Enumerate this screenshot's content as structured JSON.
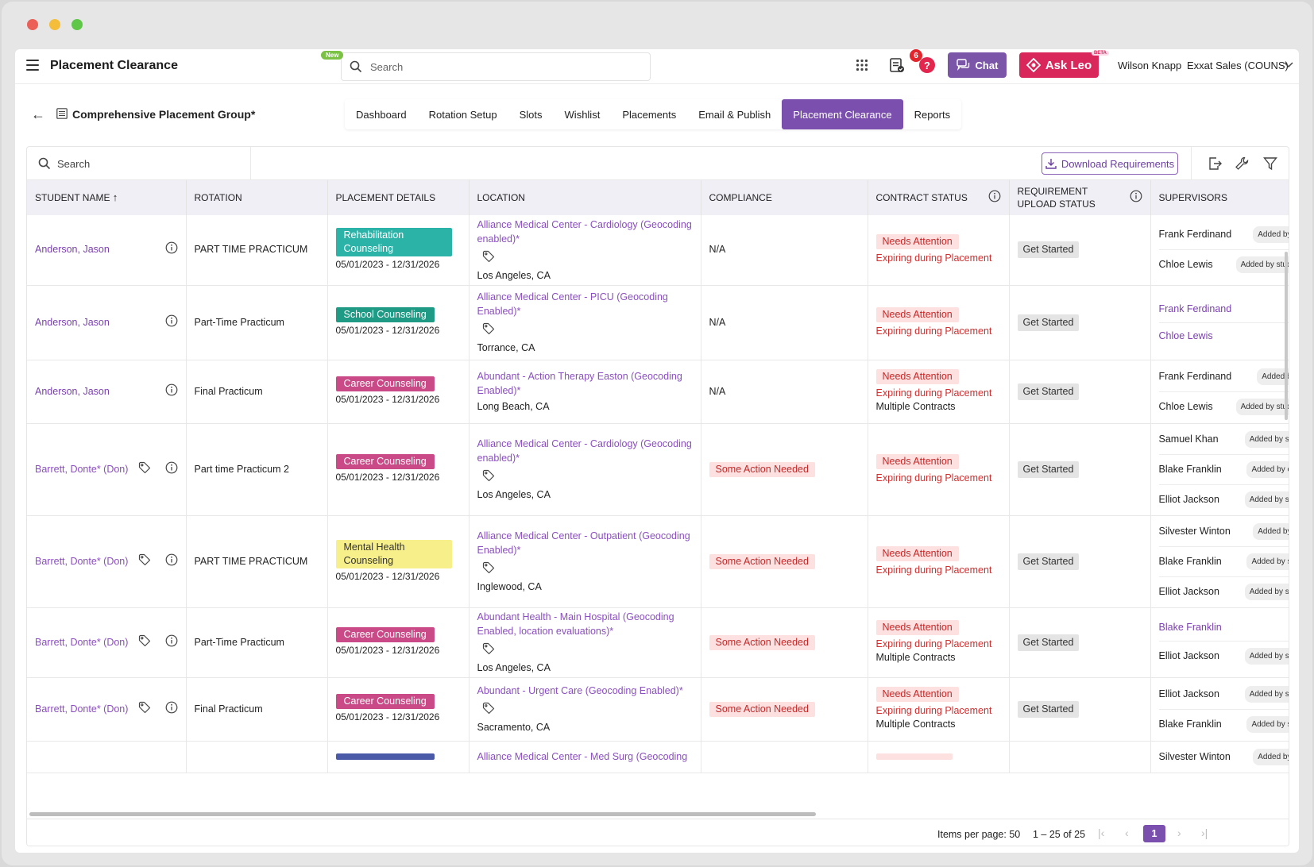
{
  "window": {
    "traffic_colors": [
      "#ec5f57",
      "#f5be3a",
      "#5ec747"
    ]
  },
  "header": {
    "app_title": "Placement Clearance",
    "new_badge": "New",
    "search_placeholder": "Search",
    "notification_count": "6",
    "help_label": "?",
    "chat_label": "Chat",
    "ask_leo_label": "Ask Leo",
    "beta_label": "BETA",
    "user_name": "Wilson Knapp",
    "org_name": "Exxat Sales (COUNS)"
  },
  "subheader": {
    "group_title": "Comprehensive Placement Group*",
    "tabs": [
      "Dashboard",
      "Rotation Setup",
      "Slots",
      "Wishlist",
      "Placements",
      "Email & Publish",
      "Placement Clearance",
      "Reports"
    ],
    "active_tab": "Placement Clearance"
  },
  "toolbar": {
    "search_placeholder": "Search",
    "download_label": "Download Requirements"
  },
  "table": {
    "columns": [
      "STUDENT NAME",
      "ROTATION",
      "PLACEMENT DETAILS",
      "LOCATION",
      "COMPLIANCE",
      "CONTRACT STATUS",
      "REQUIREMENT UPLOAD STATUS",
      "SUPERVISORS"
    ],
    "rows": [
      {
        "student": "Anderson, Jason",
        "tag": false,
        "rotation": "PART TIME PRACTICUM",
        "chip": "Rehabilitation Counseling",
        "chip_color": "#2bb3a8",
        "dates": "05/01/2023 - 12/31/2026",
        "location": "Alliance Medical Center - Cardiology (Geocoding enabled)*",
        "loc_tag": true,
        "city": "Los Angeles, CA",
        "compliance": "N/A",
        "contract": "Needs Attention",
        "expiring": "Expiring during Placement",
        "multiple": "",
        "upload": "Get Started",
        "supervisors": [
          {
            "name": "Frank Ferdinand",
            "added": "Added by",
            "link": false
          },
          {
            "name": "Chloe Lewis",
            "added": "Added by stud",
            "link": false
          }
        ]
      },
      {
        "student": "Anderson, Jason",
        "tag": false,
        "rotation": "Part-Time Practicum",
        "chip": "School Counseling",
        "chip_color": "#1f9a84",
        "dates": "05/01/2023 - 12/31/2026",
        "location": "Alliance Medical Center - PICU (Geocoding Enabled)*",
        "loc_tag": true,
        "city": "Torrance, CA",
        "compliance": "N/A",
        "contract": "Needs Attention",
        "expiring": "Expiring during Placement",
        "multiple": "",
        "upload": "Get Started",
        "supervisors": [
          {
            "name": "Frank Ferdinand",
            "added": "",
            "link": true
          },
          {
            "name": "Chloe Lewis",
            "added": "",
            "link": true
          }
        ]
      },
      {
        "student": "Anderson, Jason",
        "tag": false,
        "rotation": "Final Practicum",
        "chip": "Career Counseling",
        "chip_color": "#c94a86",
        "dates": "05/01/2023 - 12/31/2026",
        "location": "Abundant - Action Therapy Easton (Geocoding Enabled)*",
        "loc_tag": false,
        "city": "Long Beach, CA",
        "compliance": "N/A",
        "contract": "Needs Attention",
        "expiring": "Expiring during Placement",
        "multiple": "Multiple Contracts",
        "upload": "Get Started",
        "supervisors": [
          {
            "name": "Frank Ferdinand",
            "added": "Added b",
            "link": false
          },
          {
            "name": "Chloe Lewis",
            "added": "Added by stud",
            "link": false
          }
        ]
      },
      {
        "student": "Barrett, Donte* (Don)",
        "tag": true,
        "rotation": "Part time Practicum 2",
        "chip": "Career Counseling",
        "chip_color": "#c94a86",
        "dates": "05/01/2023 - 12/31/2026",
        "location": "Alliance Medical Center - Cardiology (Geocoding enabled)*",
        "loc_tag": true,
        "city": "Los Angeles, CA",
        "compliance": "Some Action Needed",
        "contract": "Needs Attention",
        "expiring": "Expiring during Placement",
        "multiple": "",
        "upload": "Get Started",
        "supervisors": [
          {
            "name": "Samuel Khan",
            "added": "Added by st",
            "link": false
          },
          {
            "name": "Blake Franklin",
            "added": "Added by c",
            "link": false
          },
          {
            "name": "Elliot Jackson",
            "added": "Added by st",
            "link": false
          }
        ]
      },
      {
        "student": "Barrett, Donte* (Don)",
        "tag": true,
        "rotation": "PART TIME PRACTICUM",
        "chip": "Mental Health Counseling",
        "chip_color": "#f7ef8a",
        "dates": "05/01/2023 - 12/31/2026",
        "location": "Alliance Medical Center - Outpatient (Geocoding Enabled)*",
        "loc_tag": true,
        "city": "Inglewood, CA",
        "compliance": "Some Action Needed",
        "contract": "Needs Attention",
        "expiring": "Expiring during Placement",
        "multiple": "",
        "upload": "Get Started",
        "supervisors": [
          {
            "name": "Silvester Winton",
            "added": "Added by",
            "link": false
          },
          {
            "name": "Blake Franklin",
            "added": "Added by s",
            "link": false
          },
          {
            "name": "Elliot Jackson",
            "added": "Added by st",
            "link": false
          }
        ]
      },
      {
        "student": "Barrett, Donte* (Don)",
        "tag": true,
        "rotation": "Part-Time Practicum",
        "chip": "Career Counseling",
        "chip_color": "#c94a86",
        "dates": "05/01/2023 - 12/31/2026",
        "location": "Abundant Health - Main Hospital (Geocoding Enabled, location evaluations)*",
        "loc_tag": true,
        "city": "Los Angeles, CA",
        "compliance": "Some Action Needed",
        "contract": "Needs Attention",
        "expiring": "Expiring during Placement",
        "multiple": "Multiple Contracts",
        "upload": "Get Started",
        "supervisors": [
          {
            "name": "Blake Franklin",
            "added": "",
            "link": true
          },
          {
            "name": "Elliot Jackson",
            "added": "Added by st",
            "link": false
          }
        ]
      },
      {
        "student": "Barrett, Donte* (Don)",
        "tag": true,
        "rotation": "Final Practicum",
        "chip": "Career Counseling",
        "chip_color": "#c94a86",
        "dates": "05/01/2023 - 12/31/2026",
        "location": "Abundant - Urgent Care (Geocoding Enabled)*",
        "loc_tag": true,
        "city": "Sacramento, CA",
        "compliance": "Some Action Needed",
        "contract": "Needs Attention",
        "expiring": "Expiring during Placement",
        "multiple": "Multiple Contracts",
        "upload": "Get Started",
        "supervisors": [
          {
            "name": "Elliot Jackson",
            "added": "Added by st",
            "link": false
          },
          {
            "name": "Blake Franklin",
            "added": "Added by s",
            "link": false
          }
        ]
      },
      {
        "student": "",
        "tag": false,
        "rotation": "",
        "chip": "",
        "chip_color": "#4a5aa8",
        "dates": "",
        "location": "Alliance Medical Center - Med Surg (Geocoding",
        "loc_tag": false,
        "city": "",
        "compliance": "",
        "contract": "",
        "expiring": "",
        "multiple": "",
        "upload": "",
        "supervisors": [
          {
            "name": "Silvester Winton",
            "added": "Added by",
            "link": false
          }
        ]
      }
    ]
  },
  "footer": {
    "items_per_page": "Items per page: 50",
    "range": "1 – 25 of 25",
    "current_page": "1"
  }
}
